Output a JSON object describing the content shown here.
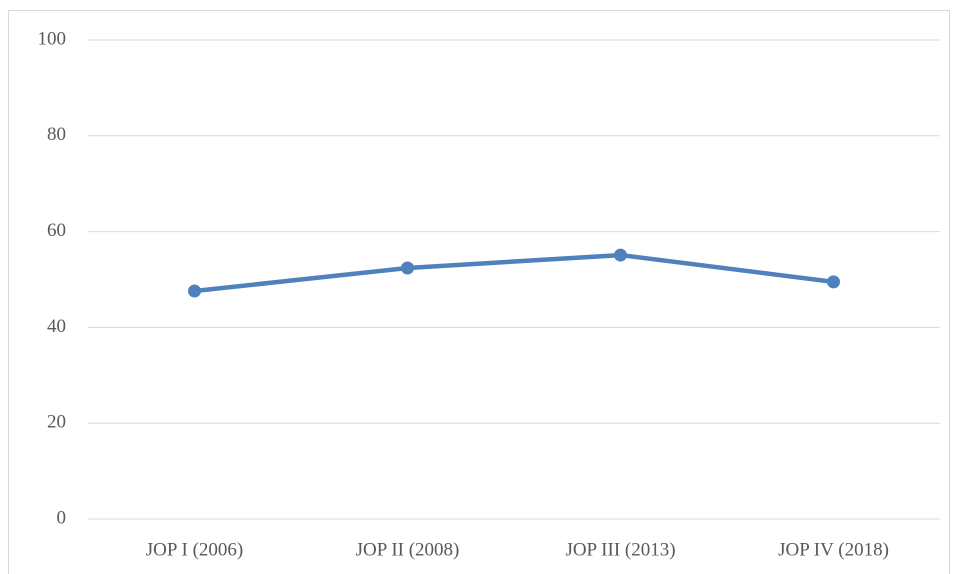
{
  "chart_data": {
    "type": "line",
    "categories": [
      "JOP I (2006)",
      "JOP II (2008)",
      "JOP III (2013)",
      "JOP IV (2018)"
    ],
    "series": [
      {
        "color": "#4f81bd",
        "values": [
          47.6,
          52.4,
          55.1,
          49.5
        ]
      }
    ],
    "ylim": [
      0,
      100
    ],
    "yticks": [
      0,
      20,
      40,
      60,
      80,
      100
    ],
    "grid": true
  }
}
